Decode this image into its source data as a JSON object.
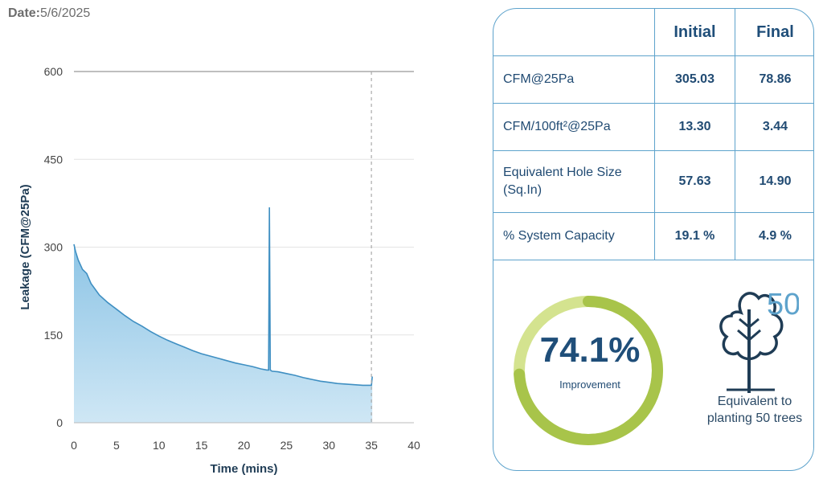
{
  "date": {
    "label": "Date:",
    "value": "5/6/2025"
  },
  "chart_data": {
    "type": "area",
    "xlabel": "Time (mins)",
    "ylabel": "Leakage (CFM@25Pa)",
    "xlim": [
      0,
      40
    ],
    "ylim": [
      0,
      600
    ],
    "xticks": [
      "0",
      "5",
      "10",
      "15",
      "20",
      "25",
      "30",
      "35",
      "40"
    ],
    "yticks": [
      "0",
      "150",
      "300",
      "450",
      "600"
    ],
    "grid": "horizontal",
    "marker_x": 35,
    "x": [
      0,
      0.2,
      0.5,
      1,
      1.5,
      2,
      3,
      4,
      5,
      6,
      7,
      8,
      9,
      10,
      11,
      12,
      13,
      14,
      15,
      16,
      17,
      18,
      19,
      20,
      21,
      22,
      22.7,
      22.9,
      23.0,
      23.1,
      23.3,
      24,
      25,
      26,
      27,
      28,
      29,
      30,
      31,
      32,
      33,
      34,
      35,
      35.1
    ],
    "values": [
      305,
      292,
      278,
      262,
      255,
      238,
      218,
      205,
      194,
      183,
      173,
      165,
      156,
      148,
      141,
      135,
      129,
      123,
      118,
      114,
      110,
      106,
      102,
      99,
      96,
      92,
      90,
      90,
      368,
      90,
      88,
      87,
      84,
      81,
      77,
      74,
      71,
      69,
      67,
      66,
      65,
      64,
      64,
      79
    ]
  },
  "table": {
    "headers": [
      "",
      "Initial",
      "Final"
    ],
    "rows": [
      {
        "label": "CFM@25Pa",
        "initial": "305.03",
        "final": "78.86"
      },
      {
        "label": "CFM/100ft²@25Pa",
        "initial": "13.30",
        "final": "3.44"
      },
      {
        "label": "Equivalent Hole Size (Sq.In)",
        "initial": "57.63",
        "final": "14.90"
      },
      {
        "label": "% System Capacity",
        "initial": "19.1 %",
        "final": "4.9 %"
      }
    ]
  },
  "improvement": {
    "value": "74.1%",
    "label": "Improvement",
    "fraction": 0.741
  },
  "trees": {
    "count": "50",
    "label_line1": "Equivalent to",
    "label_line2": "planting 50 trees"
  },
  "colors": {
    "fill": "#9fcfe9",
    "line": "#3f8fc2",
    "ring": "#a8c44a",
    "ring_light": "#d4e38f",
    "text": "#1f4e79"
  }
}
